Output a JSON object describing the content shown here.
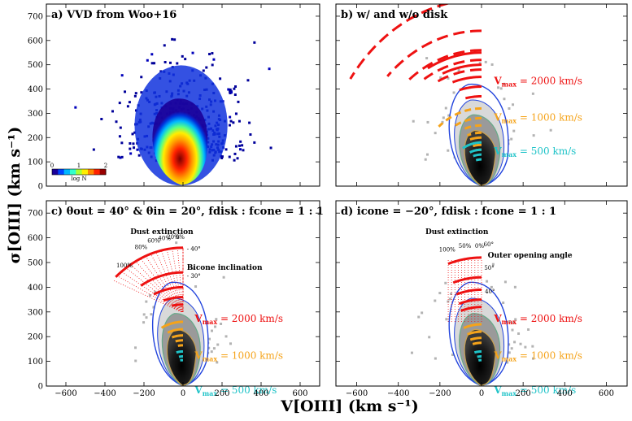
{
  "figure": {
    "ylabel": "σ[OIII] (km s⁻¹)",
    "xlabel": "V[OIII] (km s⁻¹)",
    "xticks": [
      -600,
      -400,
      -200,
      0,
      200,
      400,
      600
    ],
    "yticks": [
      0,
      100,
      200,
      300,
      400,
      500,
      600,
      700
    ]
  },
  "colorbar": {
    "ticks": [
      "0",
      "1",
      "2"
    ],
    "label": "log N",
    "colors": [
      "#1a0099",
      "#0044ff",
      "#00b7ff",
      "#33ffcc",
      "#aaff33",
      "#ffee00",
      "#ff8800",
      "#ff2200",
      "#990000"
    ]
  },
  "colors": {
    "vmax_2000": "#ee1111",
    "vmax_1000": "#f5a31a",
    "vmax_500": "#1fc3c8",
    "contour_outer": "#2244dd",
    "contour_mid": "#66aa88",
    "contour_inner": "#c8a050",
    "scatter_grey": "#b3b3b3"
  },
  "chart_data": [
    {
      "type": "heatmap",
      "panel": "a",
      "title": "a) VVD from Woo+16",
      "xlim": [
        -700,
        700
      ],
      "ylim": [
        0,
        750
      ],
      "density_peak": {
        "x": 0,
        "y": 120
      },
      "colorbar_range": [
        0,
        2
      ]
    },
    {
      "type": "line",
      "panel": "b",
      "title": "b) w/ and w/o disk",
      "xlim": [
        -700,
        700
      ],
      "ylim": [
        0,
        750
      ],
      "labels": [
        {
          "text": "V",
          "sub": "max",
          "value": " = 2000 km/s",
          "color_key": "vmax_2000",
          "x": 60,
          "y": 420
        },
        {
          "text": "V",
          "sub": "max",
          "value": " = 1000 km/s",
          "color_key": "vmax_1000",
          "x": 60,
          "y": 270
        },
        {
          "text": "V",
          "sub": "max",
          "value": " = 500 km/s",
          "color_key": "vmax_500",
          "x": 60,
          "y": 130
        }
      ]
    },
    {
      "type": "line",
      "panel": "c",
      "title": "c) θout = 40° & θin = 20°, fdisk : fcone = 1 : 1",
      "xlim": [
        -700,
        700
      ],
      "ylim": [
        0,
        750
      ],
      "annotations": {
        "dust": "Dust extinction",
        "inclination": "Bicone inclination",
        "dust_levels": [
          "100%",
          "80%",
          "60%",
          "40%",
          "20%",
          "0%"
        ],
        "angle_labels": [
          "40°",
          "30°"
        ]
      },
      "labels": [
        {
          "text": "V",
          "sub": "max",
          "value": " = 2000 km/s",
          "color_key": "vmax_2000",
          "x": 60,
          "y": 260
        },
        {
          "text": "V",
          "sub": "max",
          "value": " = 1000 km/s",
          "color_key": "vmax_1000",
          "x": 60,
          "y": 110
        },
        {
          "text": "V",
          "sub": "max",
          "value": " = 500 km/s",
          "color_key": "vmax_500",
          "x": 60,
          "y": -30
        }
      ]
    },
    {
      "type": "line",
      "panel": "d",
      "title": "d) icone = −20°, fdisk : fcone = 1 : 1",
      "xlim": [
        -700,
        700
      ],
      "ylim": [
        0,
        750
      ],
      "annotations": {
        "dust": "Dust extinction",
        "opening": "Outer opening angle",
        "dust_levels": [
          "100%",
          "50%",
          "0%"
        ],
        "angle_labels": [
          "60°",
          "50°",
          "40°"
        ]
      },
      "labels": [
        {
          "text": "V",
          "sub": "max",
          "value": " = 2000 km/s",
          "color_key": "vmax_2000",
          "x": 60,
          "y": 260
        },
        {
          "text": "V",
          "sub": "max",
          "value": " = 1000 km/s",
          "color_key": "vmax_1000",
          "x": 60,
          "y": 110
        },
        {
          "text": "V",
          "sub": "max",
          "value": " = 500 km/s",
          "color_key": "vmax_500",
          "x": 60,
          "y": -30
        }
      ]
    }
  ]
}
